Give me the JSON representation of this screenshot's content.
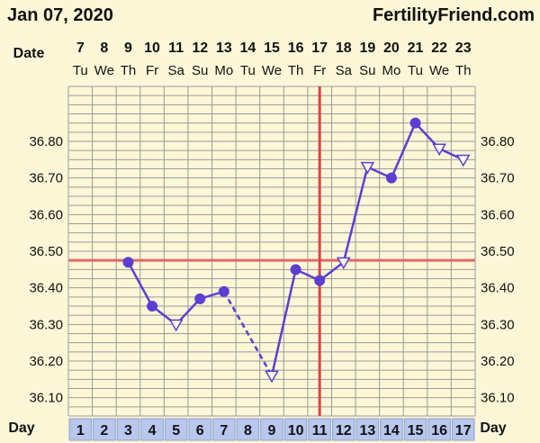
{
  "header": {
    "date": "Jan 07, 2020",
    "brand": "FertilityFriend.com"
  },
  "labels": {
    "date_row": "Date",
    "day_row": "Day"
  },
  "colors": {
    "background": "#fdf7d8",
    "grid": "#9a9a9a",
    "temp_line": "#5b3fd0",
    "coverline": "#e06a6a",
    "ovulation_line": "#d64545",
    "day_cell": "#b7c7ee"
  },
  "chart_data": {
    "type": "line",
    "title": "",
    "dates": [
      7,
      8,
      9,
      10,
      11,
      12,
      13,
      14,
      15,
      16,
      17,
      18,
      19,
      20,
      21,
      22,
      23
    ],
    "weekdays": [
      "Tu",
      "We",
      "Th",
      "Fr",
      "Sa",
      "Su",
      "Mo",
      "Tu",
      "We",
      "Th",
      "Fr",
      "Sa",
      "Su",
      "Mo",
      "Tu",
      "We",
      "Th"
    ],
    "cycle_days": [
      1,
      2,
      3,
      4,
      5,
      6,
      7,
      8,
      9,
      10,
      11,
      12,
      13,
      14,
      15,
      16,
      17
    ],
    "y_ticks": [
      "36.80",
      "36.70",
      "36.60",
      "36.50",
      "36.40",
      "36.30",
      "36.20",
      "36.10"
    ],
    "ylim": [
      36.05,
      36.95
    ],
    "grid": true,
    "coverline": 36.475,
    "ovulation_day": 11,
    "series": [
      {
        "points": [
          {
            "day": 3,
            "temp": 36.47,
            "marker": "circle"
          },
          {
            "day": 4,
            "temp": 36.35,
            "marker": "circle"
          },
          {
            "day": 5,
            "temp": 36.3,
            "marker": "triangle"
          },
          {
            "day": 6,
            "temp": 36.37,
            "marker": "circle"
          },
          {
            "day": 7,
            "temp": 36.39,
            "marker": "circle"
          },
          {
            "day": 9,
            "temp": 36.16,
            "marker": "triangle"
          },
          {
            "day": 10,
            "temp": 36.45,
            "marker": "circle"
          },
          {
            "day": 11,
            "temp": 36.42,
            "marker": "circle"
          },
          {
            "day": 12,
            "temp": 36.47,
            "marker": "triangle"
          },
          {
            "day": 13,
            "temp": 36.73,
            "marker": "triangle"
          },
          {
            "day": 14,
            "temp": 36.7,
            "marker": "circle"
          },
          {
            "day": 15,
            "temp": 36.85,
            "marker": "circle"
          },
          {
            "day": 16,
            "temp": 36.78,
            "marker": "triangle"
          },
          {
            "day": 17,
            "temp": 36.75,
            "marker": "triangle"
          }
        ],
        "dashed_segments": [
          [
            7,
            9
          ]
        ]
      }
    ]
  }
}
